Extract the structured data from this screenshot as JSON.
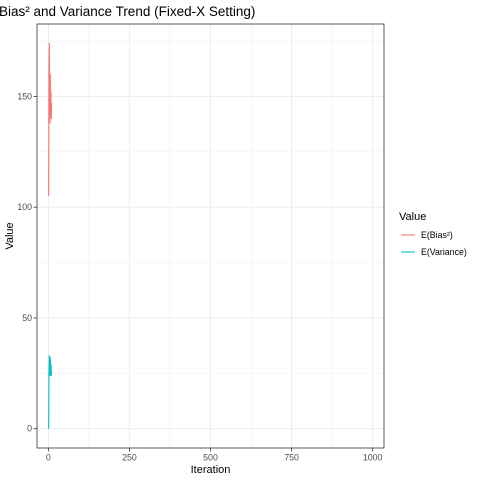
{
  "chart_data": {
    "type": "line",
    "title": "Bias² and Variance Trend (Fixed-X Setting)",
    "xlabel": "Iteration",
    "ylabel": "Value",
    "xlim": [
      -35,
      1035
    ],
    "ylim": [
      -8.7,
      182.7
    ],
    "x_ticks": [
      0,
      250,
      500,
      750,
      1000
    ],
    "x_tick_labels": [
      "0",
      "250",
      "500",
      "750",
      "1000"
    ],
    "y_ticks": [
      0,
      50,
      100,
      150
    ],
    "y_tick_labels": [
      "0",
      "50",
      "100",
      "150"
    ],
    "grid": true,
    "legend": {
      "title": "Value",
      "position": "right"
    },
    "series": [
      {
        "name": "E(Bias²)",
        "color": "#F8766D",
        "x": [
          1,
          2,
          3,
          4,
          5,
          6,
          7,
          8,
          9,
          10
        ],
        "values": [
          105,
          165,
          174,
          150,
          138,
          160,
          145,
          152,
          140,
          147
        ]
      },
      {
        "name": "E(Variance)",
        "color": "#00BFC4",
        "x": [
          1,
          2,
          3,
          4,
          5,
          6,
          7,
          8,
          9,
          10
        ],
        "values": [
          0,
          25,
          33,
          30,
          24,
          32,
          27,
          29,
          24,
          26
        ]
      }
    ]
  }
}
